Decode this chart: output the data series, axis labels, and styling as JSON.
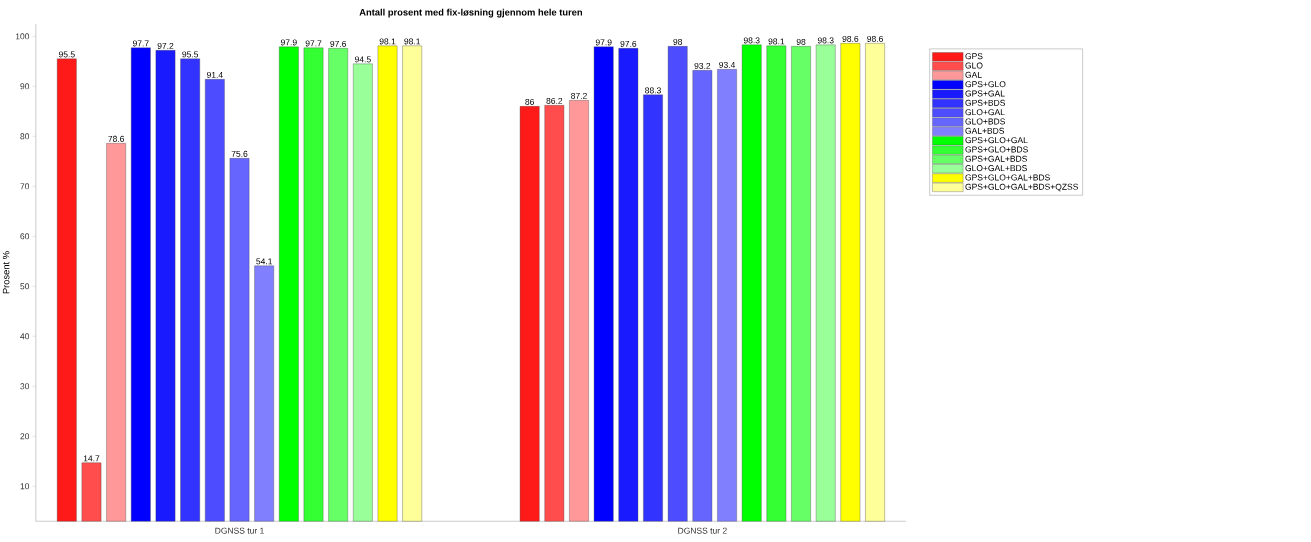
{
  "chart_data": {
    "type": "bar",
    "title": "Antall prosent med fix-løsning gjennom hele turen",
    "ylabel": "Prosent %",
    "categories": [
      "DGNSS tur 1",
      "DGNSS tur 2"
    ],
    "ylim": [
      3,
      102.5
    ],
    "yticks": [
      10,
      20,
      30,
      40,
      50,
      60,
      70,
      80,
      90,
      100
    ],
    "grid": false,
    "legend": "top right",
    "series": [
      {
        "name": "GPS",
        "color": "#ff1a1a",
        "values": [
          95.5,
          86
        ],
        "value_labels": [
          "95.5",
          "86"
        ]
      },
      {
        "name": "GLO",
        "color": "#ff4d4d",
        "values": [
          14.7,
          86.2
        ],
        "value_labels": [
          "14.7",
          "86.2"
        ]
      },
      {
        "name": "GAL",
        "color": "#ff9999",
        "values": [
          78.6,
          87.2
        ],
        "value_labels": [
          "78.6",
          "87.2"
        ]
      },
      {
        "name": "GPS+GLO",
        "color": "#0000ff",
        "values": [
          97.7,
          97.9
        ],
        "value_labels": [
          "97.7",
          "97.9"
        ]
      },
      {
        "name": "GPS+GAL",
        "color": "#1a1aff",
        "values": [
          97.2,
          97.6
        ],
        "value_labels": [
          "97.2",
          "97.6"
        ]
      },
      {
        "name": "GPS+BDS",
        "color": "#3333ff",
        "values": [
          95.5,
          88.3
        ],
        "value_labels": [
          "95.5",
          "88.3"
        ]
      },
      {
        "name": "GLO+GAL",
        "color": "#4d4dff",
        "values": [
          91.4,
          98
        ],
        "value_labels": [
          "91.4",
          "98"
        ]
      },
      {
        "name": "GLO+BDS",
        "color": "#6666ff",
        "values": [
          75.6,
          93.2
        ],
        "value_labels": [
          "75.6",
          "93.2"
        ]
      },
      {
        "name": "GAL+BDS",
        "color": "#8080ff",
        "values": [
          54.1,
          93.4
        ],
        "value_labels": [
          "54.1",
          "93.4"
        ]
      },
      {
        "name": "GPS+GLO+GAL",
        "color": "#00ff00",
        "values": [
          97.9,
          98.3
        ],
        "value_labels": [
          "97.9",
          "98.3"
        ]
      },
      {
        "name": "GPS+GLO+BDS",
        "color": "#33ff33",
        "values": [
          97.7,
          98.1
        ],
        "value_labels": [
          "97.7",
          "98.1"
        ]
      },
      {
        "name": "GPS+GAL+BDS",
        "color": "#66ff66",
        "values": [
          97.6,
          98
        ],
        "value_labels": [
          "97.6",
          "98"
        ]
      },
      {
        "name": "GLO+GAL+BDS",
        "color": "#99ff99",
        "values": [
          94.5,
          98.3
        ],
        "value_labels": [
          "94.5",
          "98.3"
        ]
      },
      {
        "name": "GPS+GLO+GAL+BDS",
        "color": "#ffff00",
        "values": [
          98.1,
          98.6
        ],
        "value_labels": [
          "98.1",
          "98.6"
        ]
      },
      {
        "name": "GPS+GLO+GAL+BDS+QZSS",
        "color": "#ffff99",
        "values": [
          98.1,
          98.6
        ],
        "value_labels": [
          "98.1",
          "98.6"
        ]
      }
    ]
  }
}
